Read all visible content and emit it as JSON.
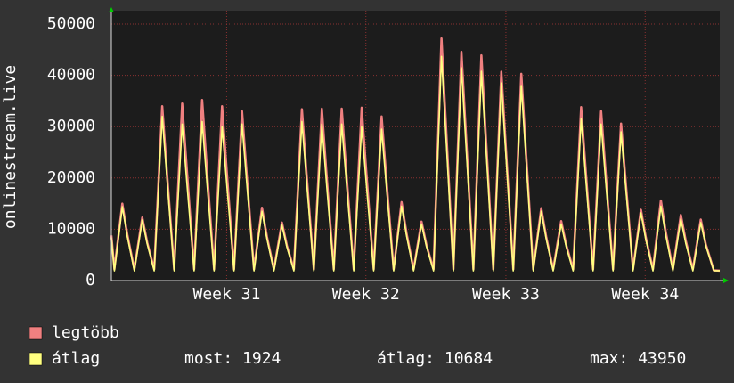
{
  "chart_data": {
    "type": "line",
    "ylabel": "onlinestream.live",
    "x": [
      0,
      0.15,
      0.55,
      0.8,
      1.15,
      1.55,
      1.8,
      2.15,
      2.55,
      2.8,
      3.15,
      3.55,
      3.8,
      4.15,
      4.55,
      4.8,
      5.15,
      5.55,
      5.8,
      6.15,
      6.55,
      6.8,
      7.15,
      7.55,
      7.8,
      8.15,
      8.55,
      8.8,
      9.15,
      9.55,
      9.8,
      10.15,
      10.55,
      10.8,
      11.15,
      11.55,
      11.8,
      12.15,
      12.55,
      12.8,
      13.15,
      13.55,
      13.8,
      14.15,
      14.55,
      14.8,
      15.15,
      15.55,
      15.8,
      16.15,
      16.55,
      16.8,
      17.15,
      17.55,
      17.8,
      18.15,
      18.55,
      18.8,
      19.15,
      19.55,
      19.8,
      20.15,
      20.55,
      20.8,
      21.15,
      21.55,
      21.8,
      22.15,
      22.55,
      22.8,
      23.15,
      23.55,
      23.8,
      24.15,
      24.55,
      24.8,
      25.15,
      25.55,
      25.8,
      26.15,
      26.55,
      26.8,
      27.15,
      27.55,
      27.8,
      28.15,
      28.55,
      28.8,
      29.15,
      29.55,
      29.8,
      30.2,
      30.5
    ],
    "series": [
      {
        "name": "legtöbb",
        "color": "#f08080",
        "values": [
          8800,
          2200,
          15000,
          9000,
          2200,
          12300,
          7400,
          2200,
          34000,
          20400,
          2200,
          34500,
          20700,
          2200,
          35200,
          21100,
          2200,
          34000,
          20400,
          2200,
          33000,
          19800,
          2200,
          14200,
          8500,
          2200,
          11300,
          6800,
          2200,
          33400,
          20000,
          2200,
          33500,
          20100,
          2200,
          33500,
          20100,
          2200,
          33700,
          20200,
          2200,
          32000,
          19200,
          2200,
          15300,
          9200,
          2200,
          11500,
          6900,
          2200,
          47200,
          28300,
          2200,
          44600,
          26800,
          2200,
          43900,
          26300,
          2200,
          40700,
          24400,
          2200,
          40300,
          24200,
          2200,
          14100,
          8500,
          2200,
          11600,
          7000,
          2200,
          33800,
          20300,
          2200,
          33000,
          19800,
          2200,
          30600,
          18400,
          2200,
          13800,
          8300,
          2200,
          15600,
          9400,
          2200,
          12800,
          7700,
          2200,
          11900,
          7100,
          2000,
          1924
        ]
      },
      {
        "name": "átlag",
        "color": "#ffff80",
        "values": [
          8400,
          1900,
          14400,
          8600,
          1900,
          11800,
          7100,
          1900,
          32000,
          19200,
          1900,
          30500,
          18300,
          1900,
          31000,
          18600,
          1900,
          30000,
          18000,
          1900,
          30500,
          18300,
          1900,
          13500,
          8100,
          1900,
          10800,
          6500,
          1900,
          31000,
          18600,
          1900,
          30500,
          18300,
          1900,
          30500,
          18300,
          1900,
          30000,
          18000,
          1900,
          29500,
          17700,
          1900,
          14500,
          8700,
          1900,
          11000,
          6600,
          1900,
          43700,
          26200,
          1900,
          41500,
          24900,
          1900,
          40800,
          24500,
          1900,
          38500,
          23100,
          1900,
          38000,
          22800,
          1900,
          13500,
          8100,
          1900,
          11000,
          6600,
          1900,
          31500,
          18900,
          1900,
          30500,
          18300,
          1900,
          29000,
          17400,
          1900,
          13200,
          7900,
          1900,
          14500,
          8700,
          1900,
          12000,
          7200,
          1900,
          11300,
          6800,
          1924,
          1924
        ]
      }
    ],
    "xlim": [
      0,
      30.5
    ],
    "xticks": [
      {
        "value": 5.78,
        "label": "Week 31"
      },
      {
        "value": 12.76,
        "label": "Week 32"
      },
      {
        "value": 19.78,
        "label": "Week 33"
      },
      {
        "value": 26.76,
        "label": "Week 34"
      }
    ],
    "ylim": [
      0,
      50000
    ],
    "yticks": [
      0,
      10000,
      20000,
      30000,
      40000,
      50000
    ],
    "grid": true,
    "stats": [
      {
        "label": "most:",
        "value": 1924
      },
      {
        "label": "átlag:",
        "value": 10684
      },
      {
        "label": "max:",
        "value": 43950
      }
    ]
  }
}
